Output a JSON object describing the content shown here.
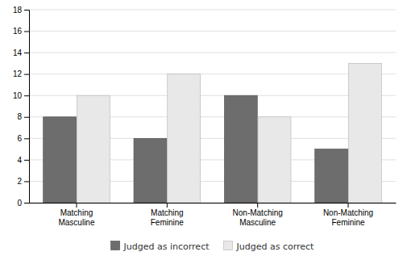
{
  "chart_data": {
    "type": "bar",
    "categories": [
      "Matching\nMasculine",
      "Matching\nFeminine",
      "Non-Matching\nMasculine",
      "Non-Matching\nFeminine"
    ],
    "series": [
      {
        "name": "Judged as incorrect",
        "color": "#6d6d6d",
        "values": [
          8,
          6,
          10,
          5
        ]
      },
      {
        "name": "Judged as correct",
        "color": "#e8e8e8",
        "values": [
          10,
          12,
          8,
          13
        ]
      }
    ],
    "ylim": [
      0,
      18
    ],
    "yticks": [
      0,
      2,
      4,
      6,
      8,
      10,
      12,
      14,
      16,
      18
    ],
    "grid": true,
    "legend": "bottom"
  }
}
